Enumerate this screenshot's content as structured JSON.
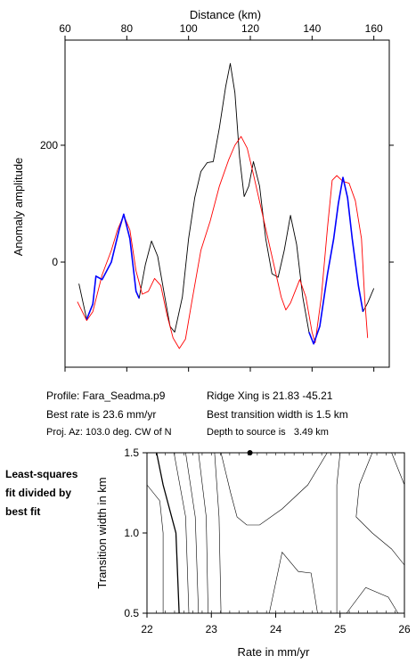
{
  "top_chart": {
    "x_label": "Distance (km)",
    "y_label": "Anomaly amplitude",
    "colors": {
      "observed": "#000000",
      "model": "#ff0000",
      "fit_window": "#0000ff"
    }
  },
  "info": {
    "profile": "Profile: Fara_Seadma.p9",
    "ridge_xing": "Ridge Xing is 21.83 -45.21",
    "best_rate": "Best rate is 23.6 mm/yr",
    "best_width": "Best transition width is 1.5 km",
    "proj_az": "Proj. Az: 103.0 deg. CW of N",
    "depth": "Depth to source is   3.49 km"
  },
  "side_label": [
    "Least-squares",
    "fit divided by",
    "best fit"
  ],
  "bottom_chart": {
    "x_label": "Rate in mm/yr",
    "y_label": "Transition width in km"
  },
  "chart_data": [
    {
      "type": "line",
      "xlabel": "Distance (km)",
      "ylabel": "Anomaly amplitude",
      "xlim": [
        60,
        165
      ],
      "ylim": [
        -180,
        380
      ],
      "x_ticks": [
        60,
        80,
        100,
        120,
        140,
        160
      ],
      "y_ticks": [
        0,
        200
      ],
      "series": [
        {
          "color": "#000000",
          "points": [
            [
              64.5,
              -37
            ],
            [
              67,
              -98
            ],
            [
              69,
              -72
            ],
            [
              70,
              -24
            ],
            [
              72,
              -30
            ],
            [
              75,
              0
            ],
            [
              77.5,
              55
            ],
            [
              79,
              82
            ],
            [
              81,
              40
            ],
            [
              83,
              -50
            ],
            [
              84,
              -62
            ],
            [
              86,
              -5
            ],
            [
              88,
              36
            ],
            [
              90,
              10
            ],
            [
              92,
              -50
            ],
            [
              94,
              -110
            ],
            [
              95.5,
              -120
            ],
            [
              98,
              -60
            ],
            [
              100,
              40
            ],
            [
              102,
              110
            ],
            [
              104,
              155
            ],
            [
              106,
              170
            ],
            [
              108,
              172
            ],
            [
              110,
              230
            ],
            [
              112,
              300
            ],
            [
              113.5,
              340
            ],
            [
              115,
              290
            ],
            [
              116.5,
              180
            ],
            [
              118,
              112
            ],
            [
              119.5,
              130
            ],
            [
              121,
              172
            ],
            [
              123,
              130
            ],
            [
              125,
              40
            ],
            [
              127,
              -20
            ],
            [
              129,
              -26
            ],
            [
              131,
              20
            ],
            [
              133,
              80
            ],
            [
              135,
              30
            ],
            [
              137,
              -60
            ],
            [
              139,
              -120
            ],
            [
              140.5,
              -140
            ],
            [
              142.5,
              -110
            ],
            [
              145,
              -20
            ],
            [
              147,
              40
            ],
            [
              148.5,
              100
            ],
            [
              150,
              145
            ],
            [
              151.5,
              110
            ],
            [
              153,
              40
            ],
            [
              155,
              -40
            ],
            [
              156.5,
              -85
            ],
            [
              158,
              -70
            ],
            [
              160,
              -45
            ]
          ]
        },
        {
          "color": "#ff0000",
          "points": [
            [
              64,
              -68
            ],
            [
              67,
              -100
            ],
            [
              69,
              -85
            ],
            [
              72,
              -22
            ],
            [
              75,
              20
            ],
            [
              77,
              55
            ],
            [
              79,
              80
            ],
            [
              81,
              55
            ],
            [
              83,
              -15
            ],
            [
              85,
              -55
            ],
            [
              87,
              -50
            ],
            [
              89,
              -28
            ],
            [
              91,
              -40
            ],
            [
              93,
              -90
            ],
            [
              95,
              -130
            ],
            [
              97,
              -148
            ],
            [
              99,
              -132
            ],
            [
              101,
              -70
            ],
            [
              104,
              20
            ],
            [
              107,
              70
            ],
            [
              110,
              130
            ],
            [
              113,
              175
            ],
            [
              115,
              200
            ],
            [
              117,
              215
            ],
            [
              119,
              195
            ],
            [
              121,
              150
            ],
            [
              124,
              80
            ],
            [
              127,
              10
            ],
            [
              130,
              -60
            ],
            [
              131.5,
              -82
            ],
            [
              133,
              -70
            ],
            [
              136,
              -30
            ],
            [
              138,
              -60
            ],
            [
              140,
              -120
            ],
            [
              141,
              -138
            ],
            [
              143,
              -60
            ],
            [
              145,
              60
            ],
            [
              146.5,
              140
            ],
            [
              148,
              148
            ],
            [
              150,
              138
            ],
            [
              152,
              135
            ],
            [
              154,
              105
            ],
            [
              156,
              40
            ],
            [
              157,
              -60
            ],
            [
              158,
              -130
            ]
          ]
        },
        {
          "color": "#0000ff",
          "points": [
            [
              67,
              -98
            ],
            [
              69,
              -72
            ],
            [
              70,
              -24
            ],
            [
              72,
              -30
            ],
            [
              75,
              0
            ],
            [
              77.5,
              55
            ],
            [
              79,
              82
            ],
            [
              81,
              40
            ],
            [
              83,
              -50
            ],
            [
              84,
              -62
            ]
          ]
        },
        {
          "color": "#0000ff",
          "points": [
            [
              139,
              -120
            ],
            [
              140.5,
              -140
            ],
            [
              142.5,
              -110
            ],
            [
              145,
              -20
            ],
            [
              147,
              40
            ],
            [
              148.5,
              100
            ],
            [
              150,
              145
            ],
            [
              151.5,
              110
            ],
            [
              153,
              40
            ],
            [
              155,
              -40
            ],
            [
              156.5,
              -85
            ]
          ]
        }
      ]
    },
    {
      "type": "contour",
      "xlabel": "Rate in mm/yr",
      "ylabel": "Transition width in km",
      "xlim": [
        22,
        26
      ],
      "ylim": [
        0.5,
        1.5
      ],
      "x_ticks": [
        22,
        23,
        24,
        25,
        26
      ],
      "y_ticks": [
        0.5,
        1.0,
        1.5
      ],
      "best_fit_point": [
        23.6,
        1.5
      ],
      "contours": [
        {
          "bold": true,
          "points": [
            [
              22.15,
              1.5
            ],
            [
              22.25,
              1.3
            ],
            [
              22.45,
              1.0
            ],
            [
              22.5,
              0.5
            ]
          ]
        },
        {
          "bold": false,
          "points": [
            [
              22.0,
              1.3
            ],
            [
              22.2,
              1.2
            ],
            [
              22.25,
              1.0
            ],
            [
              22.25,
              0.5
            ]
          ]
        },
        {
          "bold": false,
          "points": [
            [
              22.42,
              1.5
            ],
            [
              22.6,
              1.1
            ],
            [
              22.65,
              0.5
            ]
          ]
        },
        {
          "bold": false,
          "points": [
            [
              22.6,
              1.5
            ],
            [
              22.75,
              1.1
            ],
            [
              22.8,
              0.5
            ]
          ]
        },
        {
          "bold": false,
          "points": [
            [
              22.8,
              1.5
            ],
            [
              22.92,
              1.1
            ],
            [
              22.95,
              0.5
            ]
          ]
        },
        {
          "bold": false,
          "points": [
            [
              23.05,
              1.5
            ],
            [
              23.12,
              1.1
            ],
            [
              23.15,
              0.5
            ]
          ]
        },
        {
          "bold": false,
          "points": [
            [
              24.8,
              1.5
            ],
            [
              24.5,
              1.3
            ],
            [
              24.1,
              1.15
            ],
            [
              23.75,
              1.05
            ],
            [
              23.55,
              1.05
            ],
            [
              23.4,
              1.1
            ],
            [
              23.3,
              1.25
            ],
            [
              23.15,
              1.5
            ]
          ]
        },
        {
          "bold": false,
          "points": [
            [
              25.0,
              1.5
            ],
            [
              24.95,
              1.3
            ],
            [
              24.95,
              1.05
            ],
            [
              24.95,
              0.5
            ]
          ]
        },
        {
          "bold": false,
          "points": [
            [
              25.5,
              1.5
            ],
            [
              25.3,
              1.3
            ],
            [
              25.25,
              1.1
            ],
            [
              25.5,
              1.0
            ],
            [
              25.8,
              0.9
            ],
            [
              26.0,
              0.8
            ]
          ]
        },
        {
          "bold": false,
          "points": [
            [
              25.8,
              1.5
            ],
            [
              26.0,
              1.3
            ]
          ]
        },
        {
          "bold": false,
          "points": [
            [
              23.9,
              0.5
            ],
            [
              24.1,
              0.88
            ],
            [
              24.35,
              0.76
            ],
            [
              24.55,
              0.75
            ],
            [
              24.65,
              0.5
            ]
          ]
        },
        {
          "bold": false,
          "points": [
            [
              25.1,
              0.5
            ],
            [
              25.4,
              0.66
            ],
            [
              25.75,
              0.6
            ],
            [
              25.9,
              0.5
            ]
          ]
        }
      ]
    }
  ]
}
